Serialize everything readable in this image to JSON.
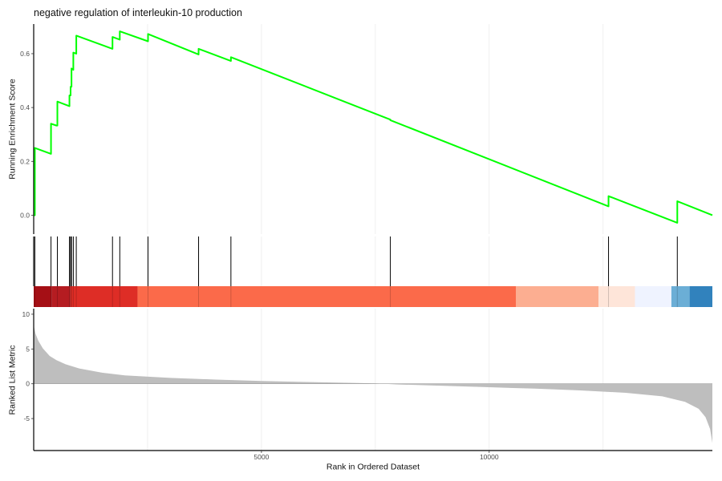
{
  "chart_data": {
    "type": "line",
    "title": "negative regulation of interleukin-10 production",
    "xlabel": "Rank in Ordered Dataset",
    "x_ticks": [
      5000,
      10000
    ],
    "xlim": [
      0,
      14900
    ],
    "colors": {
      "es_line": "#00ff00",
      "hit_line": "#000000",
      "metric_fill": "#bebebe",
      "grid": "#ebebeb"
    },
    "panels": {
      "running_es": {
        "ylabel": "Running Enrichment Score",
        "ylim": [
          -0.07,
          0.71
        ],
        "y_ticks": [
          0.0,
          0.2,
          0.4,
          0.6
        ],
        "y_tick_labels": [
          "0.0",
          "0.2",
          "0.4",
          "0.6"
        ],
        "points": [
          [
            0,
            0
          ],
          [
            25,
            0
          ],
          [
            25,
            0.25
          ],
          [
            380,
            0.228
          ],
          [
            380,
            0.34
          ],
          [
            500,
            0.333
          ],
          [
            520,
            0.333
          ],
          [
            520,
            0.422
          ],
          [
            785,
            0.405
          ],
          [
            785,
            0.445
          ],
          [
            810,
            0.445
          ],
          [
            810,
            0.477
          ],
          [
            830,
            0.477
          ],
          [
            830,
            0.545
          ],
          [
            870,
            0.54
          ],
          [
            870,
            0.604
          ],
          [
            935,
            0.6
          ],
          [
            935,
            0.667
          ],
          [
            1730,
            0.618
          ],
          [
            1730,
            0.662
          ],
          [
            1890,
            0.652
          ],
          [
            1890,
            0.683
          ],
          [
            2510,
            0.646
          ],
          [
            2510,
            0.673
          ],
          [
            3620,
            0.597
          ],
          [
            3620,
            0.618
          ],
          [
            4330,
            0.573
          ],
          [
            4330,
            0.587
          ],
          [
            7830,
            0.355
          ],
          [
            7830,
            0.353
          ],
          [
            12620,
            0.033
          ],
          [
            12620,
            0.071
          ],
          [
            14130,
            -0.028
          ],
          [
            14130,
            0.052
          ],
          [
            14900,
            0.0
          ]
        ]
      },
      "hits": {
        "positions": [
          25,
          380,
          520,
          785,
          810,
          830,
          870,
          935,
          1730,
          1890,
          2510,
          3620,
          4330,
          7830,
          12620,
          14130
        ]
      },
      "color_bar": {
        "segments": [
          {
            "from": 0,
            "to": 400,
            "color": "#a50f15"
          },
          {
            "from": 400,
            "to": 800,
            "color": "#b51c21"
          },
          {
            "from": 800,
            "to": 2280,
            "color": "#de2d26"
          },
          {
            "from": 2280,
            "to": 10590,
            "color": "#fb6a4a"
          },
          {
            "from": 10590,
            "to": 12400,
            "color": "#fcae91"
          },
          {
            "from": 12400,
            "to": 13200,
            "color": "#fee5d9"
          },
          {
            "from": 13200,
            "to": 14000,
            "color": "#eff3ff"
          },
          {
            "from": 14000,
            "to": 14400,
            "color": "#6baed6"
          },
          {
            "from": 14400,
            "to": 14900,
            "color": "#3182bd"
          }
        ]
      },
      "ranked_metric": {
        "ylabel": "Ranked List Metric",
        "ylim": [
          -9.6,
          10.8
        ],
        "y_ticks": [
          10,
          5,
          0,
          -5
        ],
        "y_tick_labels": [
          "10",
          "5",
          "0",
          "-5"
        ],
        "points": [
          [
            0,
            8.4
          ],
          [
            40,
            7.2
          ],
          [
            100,
            6.2
          ],
          [
            200,
            5.1
          ],
          [
            350,
            4.0
          ],
          [
            500,
            3.4
          ],
          [
            700,
            2.8
          ],
          [
            1000,
            2.2
          ],
          [
            1500,
            1.6
          ],
          [
            2000,
            1.2
          ],
          [
            3000,
            0.85
          ],
          [
            4000,
            0.6
          ],
          [
            5000,
            0.4
          ],
          [
            6000,
            0.25
          ],
          [
            7000,
            0.12
          ],
          [
            7500,
            0.05
          ],
          [
            7700,
            0.0
          ],
          [
            8000,
            -0.1
          ],
          [
            9000,
            -0.3
          ],
          [
            10000,
            -0.5
          ],
          [
            11000,
            -0.7
          ],
          [
            12000,
            -0.95
          ],
          [
            13000,
            -1.3
          ],
          [
            13800,
            -1.8
          ],
          [
            14300,
            -2.6
          ],
          [
            14600,
            -3.6
          ],
          [
            14750,
            -4.8
          ],
          [
            14850,
            -6.5
          ],
          [
            14900,
            -8.5
          ]
        ]
      }
    }
  }
}
